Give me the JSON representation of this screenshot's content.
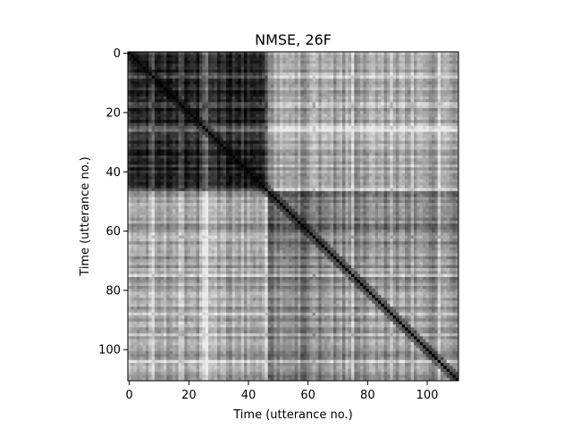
{
  "chart_data": {
    "type": "heatmap",
    "title": "NMSE, 26F",
    "xlabel": "Time (utterance no.)",
    "ylabel": "Time (utterance no.)",
    "n": 111,
    "xlim": [
      0,
      111
    ],
    "ylim": [
      111,
      0
    ],
    "y_inverted": true,
    "colormap": "gray",
    "grid": false,
    "diagonal_value": 0,
    "x_ticks": [
      0,
      20,
      40,
      60,
      80,
      100
    ],
    "y_ticks": [
      0,
      20,
      40,
      60,
      80,
      100
    ],
    "blocks": [
      {
        "range": [
          0,
          47
        ],
        "level": "dark"
      },
      {
        "range": [
          47,
          67
        ],
        "level": "medium"
      },
      {
        "range": [
          67,
          111
        ],
        "level": "medium-light"
      }
    ]
  }
}
